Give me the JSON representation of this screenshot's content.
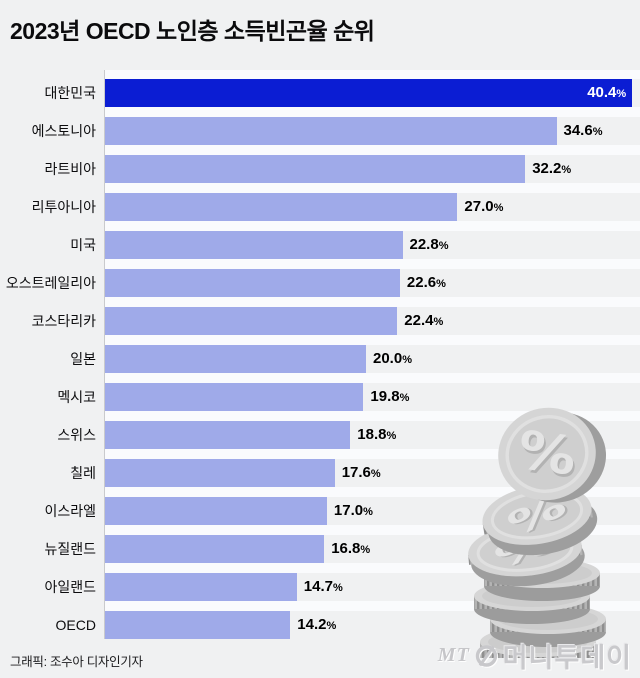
{
  "title": "2023년 OECD 노인층 소득빈곤율 순위",
  "chart_data": {
    "type": "bar",
    "orientation": "horizontal",
    "title": "2023년 OECD 노인층 소득빈곤율 순위",
    "categories": [
      "대한민국",
      "에스토니아",
      "라트비아",
      "리투아니아",
      "미국",
      "오스트레일리아",
      "코스타리카",
      "일본",
      "멕시코",
      "스위스",
      "칠레",
      "이스라엘",
      "뉴질랜드",
      "아일랜드",
      "OECD"
    ],
    "values": [
      40.4,
      34.6,
      32.2,
      27.0,
      22.8,
      22.6,
      22.4,
      20.0,
      19.8,
      18.8,
      17.6,
      17.0,
      16.8,
      14.7,
      14.2
    ],
    "value_suffix": "%",
    "highlight_index": 0,
    "xlim": [
      0,
      41
    ],
    "grid": false,
    "legend": "none",
    "colors": {
      "highlight_bar": "#0b1dd3",
      "bar": "#9faae9",
      "highlight_value_label": "#ffffff",
      "value_label": "#000000",
      "background": "#f0f1f2",
      "row_separator": "#fafbfd",
      "axis_line": "#c9cacd"
    }
  },
  "footer": {
    "credit": "그래픽: 조수아 디자인기자"
  },
  "logo": {
    "prefix": "MT",
    "name": "머니투데이"
  },
  "decoration": {
    "coin_symbol": "%"
  }
}
